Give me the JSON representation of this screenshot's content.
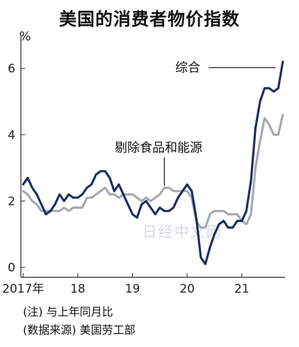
{
  "title": "美国的消费者物价指数",
  "notes": [
    "(注) 与上年同月比",
    "(数据来源) 美国劳工部"
  ],
  "watermark": "日经中文网",
  "chart_data": {
    "type": "line",
    "unit": "%",
    "ylim": [
      -0.3,
      6.8
    ],
    "yticks": [
      0,
      2,
      4,
      6
    ],
    "xticks": [
      {
        "label": "2017年",
        "x": 0
      },
      {
        "label": "18",
        "x": 12
      },
      {
        "label": "19",
        "x": 24
      },
      {
        "label": "20",
        "x": 36
      },
      {
        "label": "21",
        "x": 48
      }
    ],
    "xlim": [
      -0.5,
      57.5
    ],
    "series": [
      {
        "name": "综合",
        "color": "#1c2e62",
        "values": [
          2.5,
          2.7,
          2.4,
          2.2,
          1.9,
          1.6,
          1.7,
          1.9,
          2.2,
          2.0,
          2.2,
          2.1,
          2.1,
          2.2,
          2.4,
          2.5,
          2.8,
          2.9,
          2.9,
          2.7,
          2.3,
          2.5,
          2.2,
          1.9,
          1.6,
          1.5,
          1.9,
          2.0,
          1.8,
          1.6,
          1.8,
          1.7,
          1.7,
          1.8,
          2.1,
          2.3,
          2.5,
          2.3,
          1.5,
          0.3,
          0.1,
          0.6,
          1.0,
          1.3,
          1.4,
          1.2,
          1.2,
          1.4,
          1.4,
          1.7,
          2.6,
          4.2,
          5.0,
          5.4,
          5.4,
          5.3,
          5.4,
          6.2
        ]
      },
      {
        "name": "剔除食品和能源",
        "color": "#a5a8b3",
        "values": [
          2.3,
          2.2,
          2.0,
          1.9,
          1.7,
          1.7,
          1.7,
          1.7,
          1.7,
          1.8,
          1.7,
          1.8,
          1.8,
          1.8,
          2.1,
          2.1,
          2.2,
          2.3,
          2.4,
          2.2,
          2.2,
          2.1,
          2.2,
          2.2,
          2.2,
          2.1,
          2.0,
          2.1,
          2.0,
          2.1,
          2.2,
          2.4,
          2.4,
          2.3,
          2.3,
          2.3,
          2.3,
          2.1,
          1.4,
          1.2,
          1.2,
          1.6,
          1.7,
          1.7,
          1.7,
          1.6,
          1.6,
          1.6,
          1.4,
          1.3,
          1.6,
          3.0,
          3.8,
          4.5,
          4.3,
          4.0,
          4.0,
          4.6
        ]
      }
    ]
  }
}
